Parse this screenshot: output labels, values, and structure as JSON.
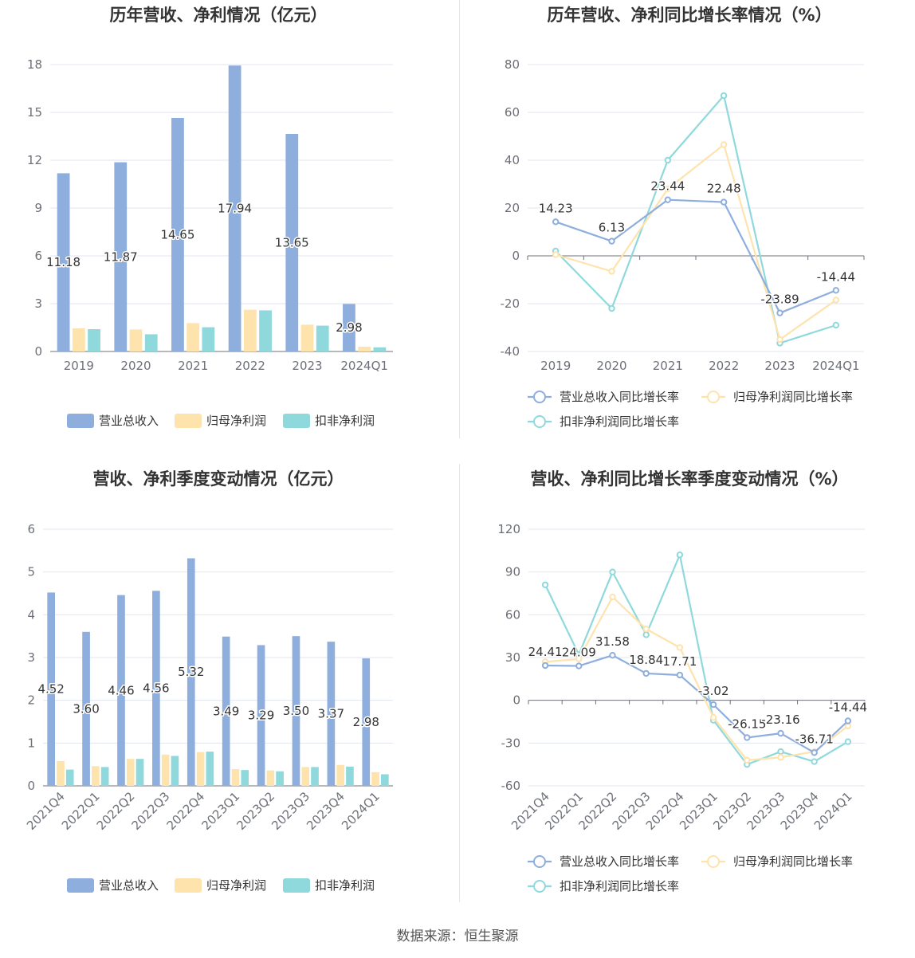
{
  "chart_data": [
    {
      "type": "bar",
      "title": "历年营收、净利情况（亿元）",
      "categories": [
        "2019",
        "2020",
        "2021",
        "2022",
        "2023",
        "2024Q1"
      ],
      "ylim": [
        0,
        18
      ],
      "yticks": [
        0,
        3,
        6,
        9,
        12,
        15,
        18
      ],
      "grid": true,
      "legend_position": "bottom",
      "series": [
        {
          "name": "营业总收入",
          "color": "#8eaedd",
          "values": [
            11.18,
            11.87,
            14.65,
            17.94,
            13.65,
            2.98
          ],
          "labels": [
            "11.18",
            "11.87",
            "14.65",
            "17.94",
            "13.65",
            "2.98"
          ]
        },
        {
          "name": "归母净利润",
          "color": "#fee3ad",
          "values": [
            1.45,
            1.38,
            1.78,
            2.62,
            1.68,
            0.3
          ]
        },
        {
          "name": "扣非净利润",
          "color": "#8fd9dc",
          "values": [
            1.4,
            1.08,
            1.52,
            2.58,
            1.62,
            0.26
          ]
        }
      ]
    },
    {
      "type": "line",
      "title": "历年营收、净利同比增长率情况（%）",
      "categories": [
        "2019",
        "2020",
        "2021",
        "2022",
        "2023",
        "2024Q1"
      ],
      "ylim": [
        -40,
        80
      ],
      "yticks": [
        -40,
        -20,
        0,
        20,
        40,
        60,
        80
      ],
      "grid": true,
      "legend_position": "bottom",
      "series": [
        {
          "name": "营业总收入同比增长率",
          "color": "#8eaedd",
          "values": [
            14.23,
            6.13,
            23.44,
            22.48,
            -23.89,
            -14.44
          ],
          "labels": [
            "14.23",
            "6.13",
            "23.44",
            "22.48",
            "-23.89",
            "-14.44"
          ]
        },
        {
          "name": "归母净利润同比增长率",
          "color": "#fee3ad",
          "values": [
            0.5,
            -6.5,
            28,
            46.5,
            -35,
            -18.5
          ]
        },
        {
          "name": "扣非净利润同比增长率",
          "color": "#8fd9dc",
          "values": [
            2,
            -22,
            40,
            67,
            -36.5,
            -29
          ]
        }
      ]
    },
    {
      "type": "bar",
      "title": "营收、净利季度变动情况（亿元）",
      "categories": [
        "2021Q4",
        "2022Q1",
        "2022Q2",
        "2022Q3",
        "2022Q4",
        "2023Q1",
        "2023Q2",
        "2023Q3",
        "2023Q4",
        "2024Q1"
      ],
      "ylim": [
        0,
        6
      ],
      "yticks": [
        0,
        1,
        2,
        3,
        4,
        5,
        6
      ],
      "grid": true,
      "legend_position": "bottom",
      "series": [
        {
          "name": "营业总收入",
          "color": "#8eaedd",
          "values": [
            4.52,
            3.6,
            4.46,
            4.56,
            5.32,
            3.49,
            3.29,
            3.5,
            3.37,
            2.98
          ],
          "labels": [
            "4.52",
            "3.60",
            "4.46",
            "4.56",
            "5.32",
            "3.49",
            "3.29",
            "3.50",
            "3.37",
            "2.98"
          ]
        },
        {
          "name": "归母净利润",
          "color": "#fee3ad",
          "values": [
            0.58,
            0.46,
            0.63,
            0.73,
            0.79,
            0.39,
            0.36,
            0.44,
            0.49,
            0.32
          ]
        },
        {
          "name": "扣非净利润",
          "color": "#8fd9dc",
          "values": [
            0.38,
            0.44,
            0.63,
            0.7,
            0.8,
            0.37,
            0.34,
            0.44,
            0.45,
            0.27
          ]
        }
      ]
    },
    {
      "type": "line",
      "title": "营收、净利同比增长率季度变动情况（%）",
      "categories": [
        "2021Q4",
        "2022Q1",
        "2022Q2",
        "2022Q3",
        "2022Q4",
        "2023Q1",
        "2023Q2",
        "2023Q3",
        "2023Q4",
        "2024Q1"
      ],
      "ylim": [
        -60,
        120
      ],
      "yticks": [
        -60,
        -30,
        0,
        30,
        60,
        90,
        120
      ],
      "grid": true,
      "legend_position": "bottom",
      "series": [
        {
          "name": "营业总收入同比增长率",
          "color": "#8eaedd",
          "values": [
            24.41,
            24.09,
            31.58,
            18.84,
            17.71,
            -3.02,
            -26.15,
            -23.16,
            -36.71,
            -14.44
          ],
          "labels": [
            "24.41",
            "24.09",
            "31.58",
            "18.84",
            "17.71",
            "-3.02",
            "-26.15",
            "-23.16",
            "-36.71",
            "-14.44"
          ]
        },
        {
          "name": "归母净利润同比增长率",
          "color": "#fee3ad",
          "values": [
            27,
            29,
            72.5,
            50,
            37,
            -12,
            -42,
            -40,
            -36,
            -18
          ]
        },
        {
          "name": "扣非净利润同比增长率",
          "color": "#8fd9dc",
          "values": [
            81,
            32,
            90,
            46,
            102,
            -14,
            -45,
            -36,
            -43,
            -29
          ]
        }
      ]
    }
  ],
  "footer": {
    "source": "数据来源：恒生聚源"
  }
}
